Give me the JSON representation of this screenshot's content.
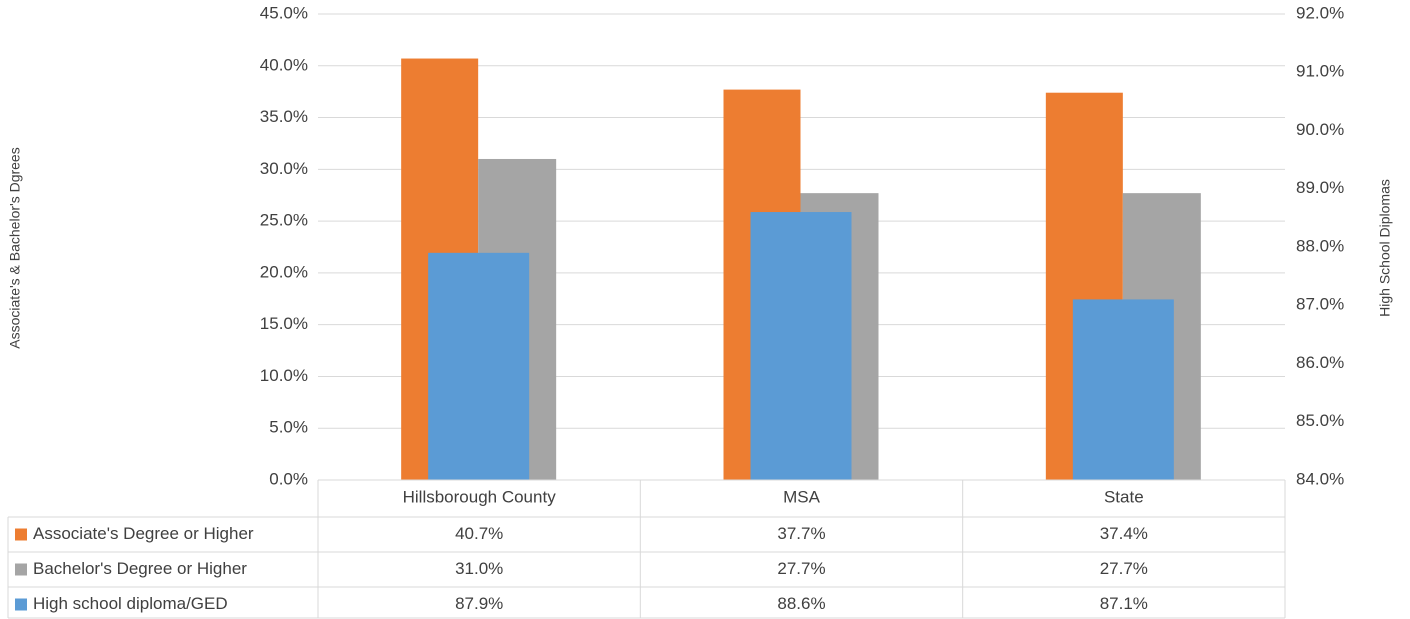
{
  "chart_data": {
    "type": "bar",
    "y_label": "Associate's & Bachelor's Dgrees",
    "y2_label": "High School Diplomas",
    "categories": [
      "Hillsborough County",
      "MSA",
      "State"
    ],
    "series": [
      {
        "name": "Associate's Degree or Higher",
        "color": "#ed7d31",
        "values": [
          40.7,
          37.7,
          37.4
        ],
        "value_labels": [
          "40.7%",
          "37.7%",
          "37.4%"
        ]
      },
      {
        "name": "Bachelor's Degree or Higher",
        "color": "#a5a5a5",
        "values": [
          31.0,
          27.7,
          27.7
        ],
        "value_labels": [
          "31.0%",
          "27.7%",
          "27.7%"
        ]
      },
      {
        "name": "High school diploma/GED",
        "color": "#5b9bd5",
        "axis": "y2",
        "values": [
          87.9,
          88.6,
          87.1
        ],
        "value_labels": [
          "87.9%",
          "88.6%",
          "87.1%"
        ]
      }
    ],
    "ylim": [
      0,
      45
    ],
    "yticks": [
      {
        "value": 0,
        "label": "0.0%"
      },
      {
        "value": 5,
        "label": "5.0%"
      },
      {
        "value": 10,
        "label": "10.0%"
      },
      {
        "value": 15,
        "label": "15.0%"
      },
      {
        "value": 20,
        "label": "20.0%"
      },
      {
        "value": 25,
        "label": "25.0%"
      },
      {
        "value": 30,
        "label": "30.0%"
      },
      {
        "value": 35,
        "label": "35.0%"
      },
      {
        "value": 40,
        "label": "40.0%"
      },
      {
        "value": 45,
        "label": "45.0%"
      }
    ],
    "y2lim": [
      84,
      92
    ],
    "y2ticks": [
      {
        "value": 84,
        "label": "84.0%"
      },
      {
        "value": 85,
        "label": "85.0%"
      },
      {
        "value": 86,
        "label": "86.0%"
      },
      {
        "value": 87,
        "label": "87.0%"
      },
      {
        "value": 88,
        "label": "88.0%"
      },
      {
        "value": 89,
        "label": "89.0%"
      },
      {
        "value": 90,
        "label": "90.0%"
      },
      {
        "value": 91,
        "label": "91.0%"
      },
      {
        "value": 92,
        "label": "92.0%"
      }
    ],
    "grid": true
  }
}
